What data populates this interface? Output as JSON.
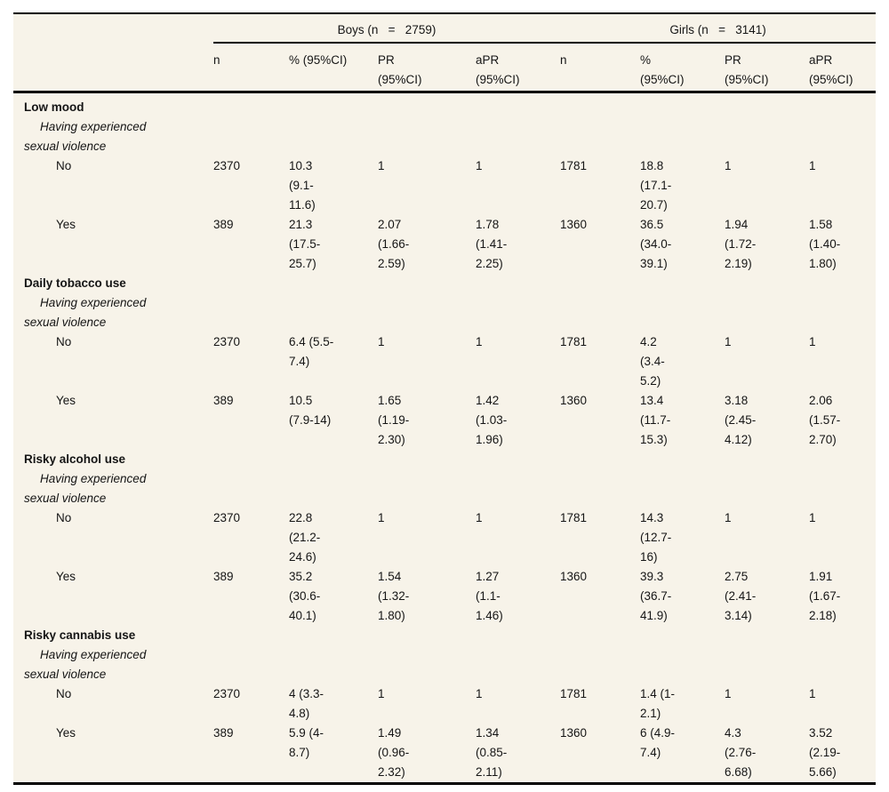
{
  "table": {
    "groups": [
      {
        "label": "Boys (n   =   2759)"
      },
      {
        "label": "Girls (n   =   3141)"
      }
    ],
    "columns": [
      "n",
      "% (95%CI)",
      "PR\n(95%CI)",
      "aPR\n(95%CI)",
      "n",
      "%\n(95%CI)",
      "PR\n(95%CI)",
      "aPR\n(95%CI)"
    ],
    "sections": [
      {
        "title": "Low mood",
        "subtitle": "Having experienced\nsexual violence",
        "rows": [
          {
            "label": "No",
            "cells": [
              "2370",
              "10.3\n(9.1-\n11.6)",
              "1",
              "1",
              "1781",
              "18.8\n(17.1-\n20.7)",
              "1",
              "1"
            ]
          },
          {
            "label": "Yes",
            "cells": [
              "389",
              "21.3\n(17.5-\n25.7)",
              "2.07\n(1.66-\n2.59)",
              "1.78\n(1.41-\n2.25)",
              "1360",
              "36.5\n(34.0-\n39.1)",
              "1.94\n(1.72-\n2.19)",
              "1.58\n(1.40-\n1.80)"
            ]
          }
        ]
      },
      {
        "title": "Daily tobacco use",
        "subtitle": "Having experienced\nsexual violence",
        "rows": [
          {
            "label": "No",
            "cells": [
              "2370",
              "6.4 (5.5-\n7.4)",
              "1",
              "1",
              "1781",
              "4.2\n(3.4-\n5.2)",
              "1",
              "1"
            ]
          },
          {
            "label": "Yes",
            "cells": [
              "389",
              "10.5\n(7.9-14)",
              "1.65\n(1.19-\n2.30)",
              "1.42\n(1.03-\n1.96)",
              "1360",
              "13.4\n(11.7-\n15.3)",
              "3.18\n(2.45-\n4.12)",
              "2.06\n(1.57-\n2.70)"
            ]
          }
        ]
      },
      {
        "title": "Risky alcohol use",
        "subtitle": "Having experienced\nsexual violence",
        "rows": [
          {
            "label": "No",
            "cells": [
              "2370",
              "22.8\n(21.2-\n24.6)",
              "1",
              "1",
              "1781",
              "14.3\n(12.7-\n16)",
              "1",
              "1"
            ]
          },
          {
            "label": "Yes",
            "cells": [
              "389",
              "35.2\n(30.6-\n40.1)",
              "1.54\n(1.32-\n1.80)",
              "1.27\n(1.1-\n1.46)",
              "1360",
              "39.3\n(36.7-\n41.9)",
              "2.75\n(2.41-\n3.14)",
              "1.91\n(1.67-\n2.18)"
            ]
          }
        ]
      },
      {
        "title": "Risky cannabis use",
        "subtitle": "Having experienced\nsexual violence",
        "rows": [
          {
            "label": "No",
            "cells": [
              "2370",
              "4 (3.3-\n4.8)",
              "1",
              "1",
              "1781",
              "1.4 (1-\n2.1)",
              "1",
              "1"
            ]
          },
          {
            "label": "Yes",
            "cells": [
              "389",
              "5.9 (4-\n8.7)",
              "1.49\n(0.96-\n2.32)",
              "1.34\n(0.85-\n2.11)",
              "1360",
              "6 (4.9-\n7.4)",
              "4.3\n(2.76-\n6.68)",
              "3.52\n(2.19-\n5.66)"
            ]
          }
        ]
      }
    ]
  }
}
